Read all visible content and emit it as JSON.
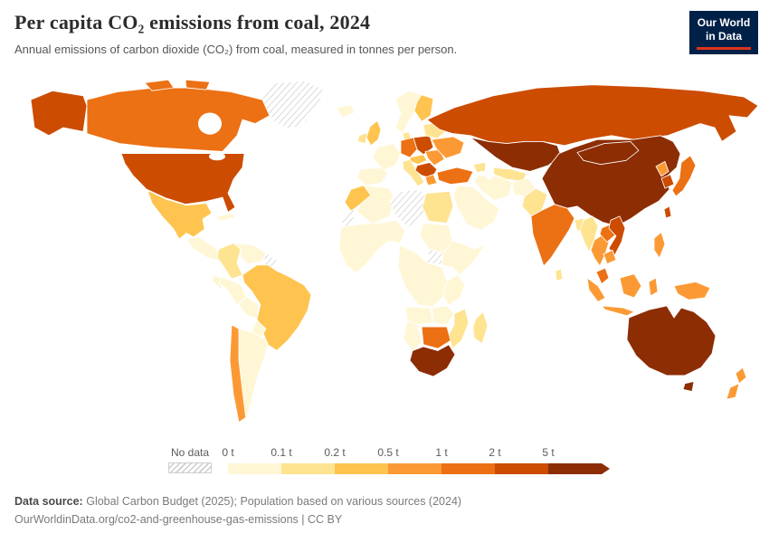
{
  "header": {
    "title": "Per capita CO₂ emissions from coal, 2024",
    "subtitle": "Annual emissions of carbon dioxide (CO₂) from coal, measured in tonnes per person.",
    "logo_line1": "Our World",
    "logo_line2": "in Data"
  },
  "footer": {
    "source_label": "Data source:",
    "source_text": "Global Carbon Budget (2025); Population based on various sources (2024)",
    "link_line": "OurWorldinData.org/co2-and-greenhouse-gas-emissions | CC BY"
  },
  "chart_data": {
    "type": "choropleth_map",
    "title": "Per capita CO₂ emissions from coal, 2024",
    "unit": "tonnes of CO₂ per person",
    "legend": {
      "no_data_label": "No data",
      "tick_labels": [
        "0 t",
        "0.1 t",
        "0.2 t",
        "0.5 t",
        "1 t",
        "2 t",
        "5 t"
      ],
      "bucket_ranges": [
        "0–0.1",
        "0.1–0.2",
        "0.2–0.5",
        "0.5–1",
        "1–2",
        "2–5",
        "5+"
      ],
      "colors": [
        "#fff6d5",
        "#fee391",
        "#fec44f",
        "#fb9a35",
        "#ec7014",
        "#cc4c02",
        "#8c2d04"
      ],
      "no_data_hatch_color": "#cccccc"
    },
    "regions": {
      "greenland": "nodata",
      "alaska": 5,
      "canada": 4,
      "usa": 5,
      "mexico": 2,
      "central_america": 0,
      "cuba": 0,
      "iceland": 0,
      "colombia": 1,
      "venezuela": 0,
      "guyanas": "nodata",
      "ecuador": 0,
      "peru": 0,
      "brazil": 2,
      "bolivia": 0,
      "paraguay": 0,
      "chile": 3,
      "argentina": 0,
      "morocco": 2,
      "western_sahara": "nodata",
      "algeria": 0,
      "libya": "nodata",
      "egypt": 1,
      "west_africa": 0,
      "sudan": 0,
      "south_sudan": "nodata",
      "horn_of_africa": 0,
      "central_africa": 0,
      "east_africa": 0,
      "angola": 0,
      "zambia": 0,
      "mozambique": 1,
      "namibia": 0,
      "botswana_zimbabwe": 4,
      "south_africa": 6,
      "madagascar": 1,
      "ireland": 1,
      "uk": 2,
      "norway_sweden": 0,
      "finland": 2,
      "denmark": 1,
      "germany": 4,
      "france": 0,
      "iberia": 0,
      "italy": 1,
      "poland_czech": 5,
      "hungary_austria": 2,
      "balkans": 5,
      "greece": 3,
      "romania": 3,
      "ukraine": 3,
      "belarus_baltics": 1,
      "turkey": 4,
      "russia": 5,
      "kazakhstan": 6,
      "central_asia": 1,
      "caucasus": 1,
      "iran": 0,
      "middle_east": 0,
      "afghanistan": 0,
      "pakistan": 1,
      "india": 4,
      "bangladesh": 1,
      "sri_lanka": 1,
      "china": 6,
      "mongolia": 6,
      "north_korea": 3,
      "south_korea": 5,
      "japan": 4,
      "taiwan": 5,
      "myanmar": 1,
      "thailand": 3,
      "laos": 4,
      "vietnam": 5,
      "cambodia": 3,
      "malaysia": 4,
      "philippines": 3,
      "indonesia": 3,
      "new_guinea": 3,
      "australia": 6,
      "tasmania": 6,
      "new_zealand": 3
    }
  }
}
